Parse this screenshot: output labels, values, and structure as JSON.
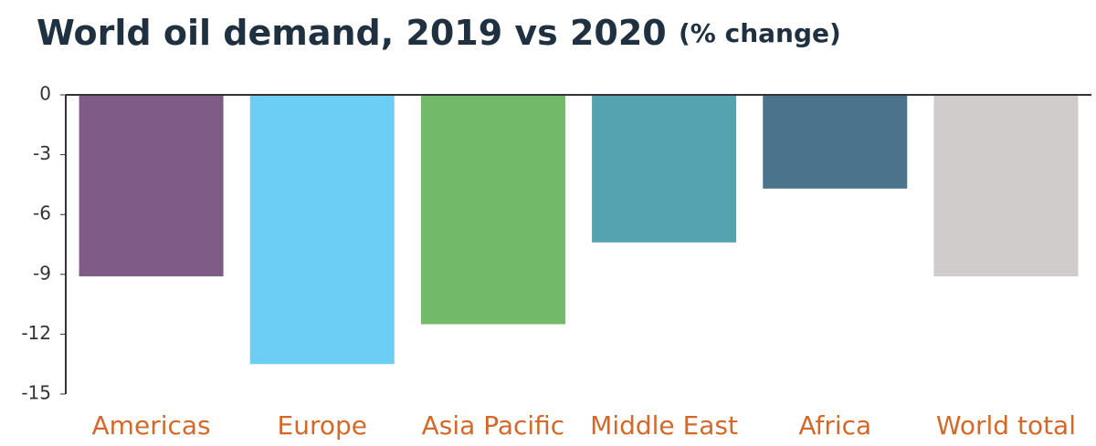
{
  "chart_data": {
    "type": "bar",
    "title": "World oil demand, 2019 vs 2020",
    "subtitle": "(% change)",
    "categories": [
      "Americas",
      "Europe",
      "Asia Pacific",
      "Middle East",
      "Africa",
      "World total"
    ],
    "values": [
      -9.1,
      -13.5,
      -11.5,
      -7.4,
      -4.7,
      -9.1
    ],
    "colors": [
      "#7f5c87",
      "#6ccef5",
      "#72b96a",
      "#55a3b0",
      "#4a738c",
      "#d0cccb"
    ],
    "ylim": [
      -15,
      0
    ],
    "yticks": [
      0,
      -3,
      -6,
      -9,
      -12,
      -15
    ],
    "grid": false
  }
}
